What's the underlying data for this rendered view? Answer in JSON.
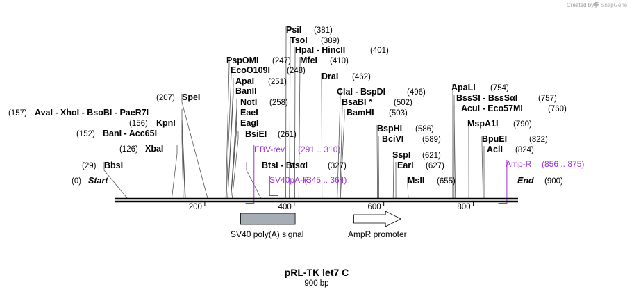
{
  "map": {
    "credit": "Created by",
    "brand": "SnapGene",
    "title": "pRL-TK let7 C",
    "length_label": "900 bp",
    "total_bp": 900
  },
  "ticks": [
    {
      "bp": 200,
      "label": "200"
    },
    {
      "bp": 400,
      "label": "400"
    },
    {
      "bp": 600,
      "label": "600"
    },
    {
      "bp": 800,
      "label": "800"
    }
  ],
  "labels": {
    "start": {
      "pos": "(0)",
      "name": "Start"
    },
    "end": {
      "name": "End",
      "pos": "(900)"
    }
  },
  "sites": [
    {
      "bp": 381,
      "text": "PsiI",
      "pos": "(381)"
    },
    {
      "bp": 389,
      "text": "TsoI",
      "pos": "(389)"
    },
    {
      "bp": 401,
      "text": "HpaI  - HincII",
      "pos": "(401)"
    },
    {
      "bp": 410,
      "text": "MfeI",
      "pos": "(410)"
    },
    {
      "bp": 247,
      "text": "PspOMI",
      "pos": "(247)"
    },
    {
      "bp": 248,
      "text": "EcoO109I",
      "pos": "(248)"
    },
    {
      "bp": 251,
      "text": "ApaI",
      "pos": "(251)"
    },
    {
      "bp": 251,
      "text": "BanII",
      "pos": ""
    },
    {
      "bp": 258,
      "text": "NotI",
      "pos": "(258)"
    },
    {
      "bp": 258,
      "text": "EaeI",
      "pos": ""
    },
    {
      "bp": 258,
      "text": "EagI",
      "pos": ""
    },
    {
      "bp": 261,
      "text": "BsiEI",
      "pos": "(261)"
    },
    {
      "bp": 462,
      "text": "DraI",
      "pos": "(462)"
    },
    {
      "bp": 496,
      "text": "ClaI  - BspDI",
      "pos": "(496)"
    },
    {
      "bp": 502,
      "text": "BsaBI *",
      "pos": "(502)"
    },
    {
      "bp": 503,
      "text": "BamHI",
      "pos": "(503)"
    },
    {
      "bp": 207,
      "text": "SpeI",
      "pos": "(207)",
      "pos_left": true
    },
    {
      "bp": 157,
      "text": "AvaI  - XhoI  - BsoBI  - PaeR7I",
      "pos": "(157)",
      "pos_left": true
    },
    {
      "bp": 156,
      "text": "KpnI",
      "pos": "(156)",
      "pos_left": true
    },
    {
      "bp": 152,
      "text": "BanI  - Acc65I",
      "pos": "(152)",
      "pos_left": true
    },
    {
      "bp": 126,
      "text": "XbaI",
      "pos": "(126)",
      "pos_left": true
    },
    {
      "bp": 29,
      "text": "BbsI",
      "pos": "(29)",
      "pos_left": true
    },
    {
      "bp": 327,
      "text": "BtsI  - BtsαI",
      "pos": "(327)"
    },
    {
      "bp": 586,
      "text": "BspHI",
      "pos": "(586)"
    },
    {
      "bp": 589,
      "text": "BciVI",
      "pos": "(589)"
    },
    {
      "bp": 621,
      "text": "SspI",
      "pos": "(621)"
    },
    {
      "bp": 627,
      "text": "EarI",
      "pos": "(627)"
    },
    {
      "bp": 655,
      "text": "MslI",
      "pos": "(655)",
      "pos_left": true
    },
    {
      "bp": 754,
      "text": "ApaLI",
      "pos": "(754)"
    },
    {
      "bp": 757,
      "text": "BssSI  - BssSαI",
      "pos": "(757)"
    },
    {
      "bp": 760,
      "text": "AcuI  - Eco57MI",
      "pos": "(760)"
    },
    {
      "bp": 790,
      "text": "MspA1I",
      "pos": "(790)"
    },
    {
      "bp": 822,
      "text": "BpuEI",
      "pos": "(822)"
    },
    {
      "bp": 824,
      "text": "AclI",
      "pos": "(824)"
    }
  ],
  "primers": [
    {
      "name": "EBV-rev",
      "range": "(291 .. 310)",
      "start": 291,
      "end": 310
    },
    {
      "name": "SV40pA-R",
      "range": "(345 .. 364)",
      "start": 345,
      "end": 364
    },
    {
      "name": "Amp-R",
      "range": "(856 .. 875)",
      "start": 856,
      "end": 875
    }
  ],
  "features": [
    {
      "name": "SV40 poly(A) signal",
      "start": 280,
      "end": 402,
      "shape": "box",
      "color": "#a6adb4"
    },
    {
      "name": "AmpR promoter",
      "start": 533,
      "end": 638,
      "shape": "arrow",
      "color": "#ffffff"
    }
  ],
  "colors": {
    "primer": "#a031d6",
    "backbone": "#000000",
    "credit": "#9a9a9a",
    "brand": "#b0b0b0"
  }
}
